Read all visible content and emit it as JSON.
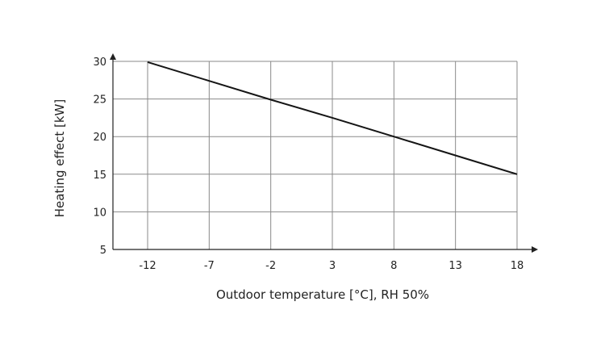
{
  "chart_data": {
    "type": "line",
    "x": [
      -12,
      -7,
      -2,
      3,
      8,
      13,
      18
    ],
    "series": [
      {
        "values": [
          29.9,
          27.4,
          24.9,
          22.5,
          20.0,
          17.5,
          15.0
        ],
        "color": "#151515"
      }
    ],
    "xlabel": "Outdoor temperature [°C], RH 50%",
    "ylabel": "Heating effect [kW]",
    "x_ticks": [
      "-12",
      "-7",
      "-2",
      "3",
      "8",
      "13",
      "18"
    ],
    "y_ticks": [
      "5",
      "10",
      "15",
      "20",
      "25",
      "30"
    ],
    "ylim": [
      5,
      30
    ],
    "grid": true,
    "colors": {
      "grid": "#8a8a8a",
      "axis": "#222222",
      "text": "#222222"
    }
  }
}
